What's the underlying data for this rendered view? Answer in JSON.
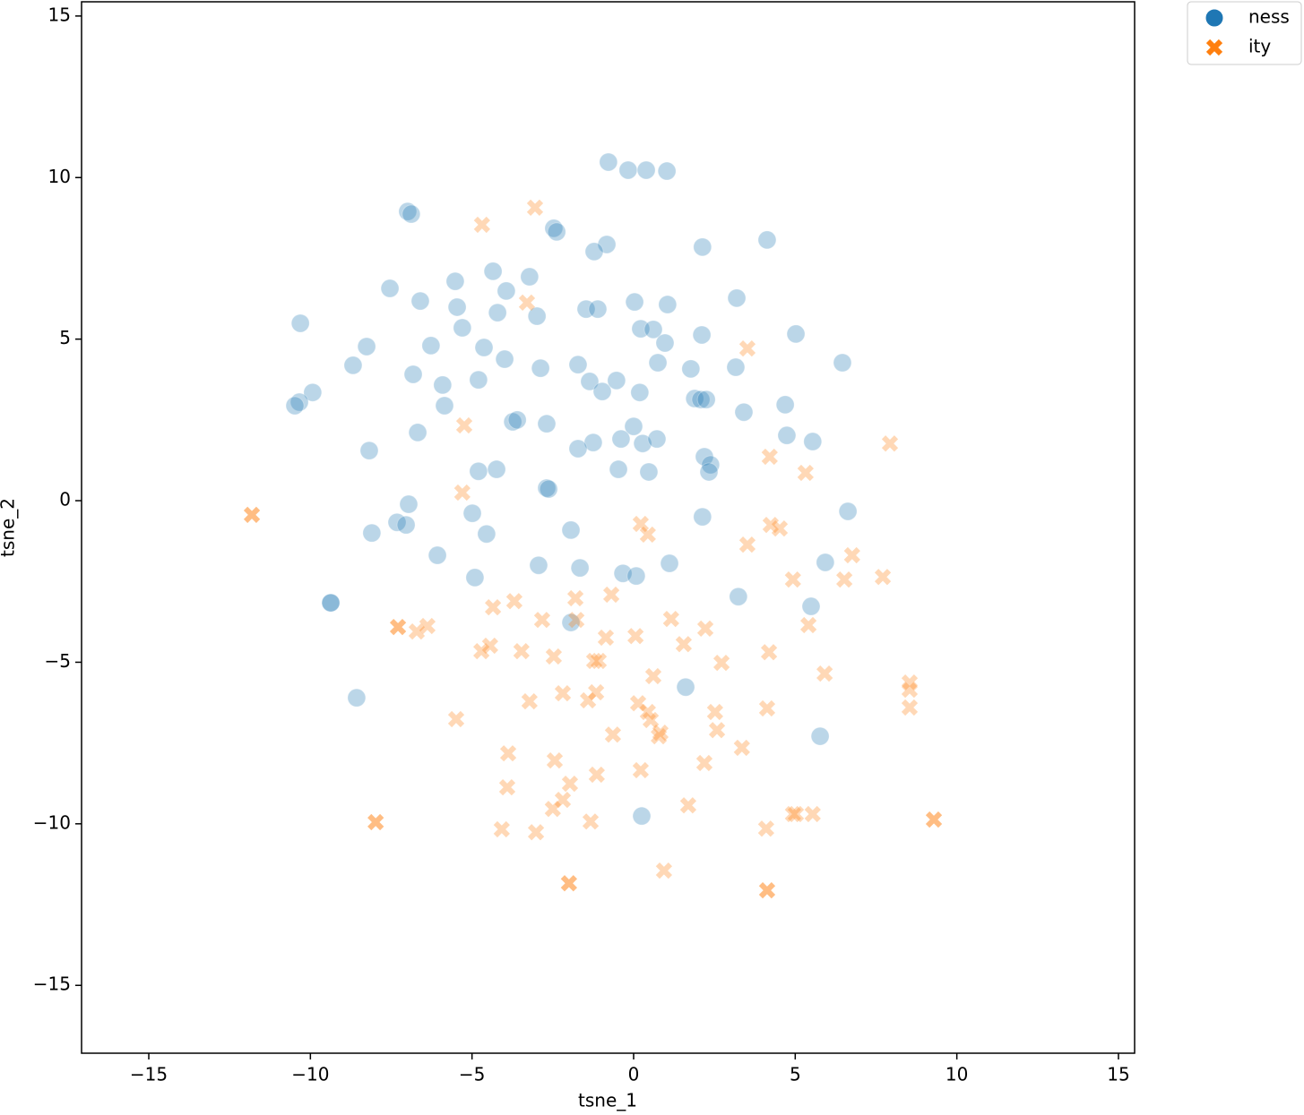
{
  "chart_data": {
    "type": "scatter",
    "xlabel": "tsne_1",
    "ylabel": "tsne_2",
    "xlim": [
      -17.08,
      15.5
    ],
    "ylim": [
      -17.1,
      15.44
    ],
    "xticks": [
      {
        "value": -15,
        "label": "−15"
      },
      {
        "value": -10,
        "label": "−10"
      },
      {
        "value": -5,
        "label": "−5"
      },
      0,
      5,
      10,
      15
    ],
    "yticks": [
      {
        "value": -15,
        "label": "−15"
      },
      {
        "value": -10,
        "label": "−10"
      },
      {
        "value": -5,
        "label": "−5"
      },
      0,
      5,
      10,
      15
    ],
    "opacity": 0.3,
    "legend": "outside upper right",
    "series": [
      {
        "name": "ness",
        "color": "#1f77b4",
        "marker": "o",
        "x": [
          -0.78,
          -0.17,
          0.39,
          1.03,
          -6.99,
          -6.88,
          -2.47,
          -2.38,
          -0.83,
          -1.22,
          2.13,
          4.13,
          -7.54,
          -6.6,
          -5.52,
          -4.35,
          -3.94,
          -3.22,
          -5.46,
          -4.21,
          -2.99,
          -1.47,
          -1.11,
          0.03,
          1.05,
          3.19,
          -10.31,
          -5.3,
          0.22,
          0.61,
          2.11,
          5.02,
          -8.26,
          -6.27,
          -4.63,
          0.97,
          -8.68,
          -3.99,
          -2.88,
          -1.72,
          0.75,
          1.77,
          3.16,
          6.46,
          -6.82,
          -4.8,
          -5.91,
          -1.36,
          -0.97,
          -0.53,
          0.19,
          -9.93,
          -10.34,
          -10.48,
          1.89,
          2.08,
          2.25,
          4.69,
          3.41,
          -5.85,
          -3.74,
          -3.6,
          -2.69,
          0.0,
          -6.68,
          4.74,
          5.54,
          -0.39,
          0.28,
          0.72,
          -1.25,
          -1.72,
          -8.18,
          2.19,
          2.38,
          2.33,
          -4.8,
          -4.24,
          -0.47,
          0.47,
          -2.69,
          -2.63,
          -6.96,
          6.63,
          -4.99,
          2.13,
          -7.32,
          -7.04,
          -8.1,
          -4.55,
          -1.94,
          -6.07,
          -2.94,
          -1.66,
          1.11,
          5.93,
          -4.91,
          -0.33,
          0.08,
          -9.37,
          -9.37,
          3.24,
          5.49,
          -1.94,
          -8.57,
          1.61,
          5.77,
          0.25
        ],
        "values": [
          10.48,
          10.23,
          10.23,
          10.2,
          8.95,
          8.87,
          8.43,
          8.32,
          7.93,
          7.71,
          7.85,
          8.07,
          6.57,
          6.18,
          6.79,
          7.1,
          6.49,
          6.93,
          5.99,
          5.82,
          5.71,
          5.93,
          5.93,
          6.15,
          6.07,
          6.27,
          5.49,
          5.35,
          5.32,
          5.3,
          5.13,
          5.16,
          4.77,
          4.8,
          4.74,
          4.88,
          4.19,
          4.38,
          4.1,
          4.21,
          4.27,
          4.08,
          4.13,
          4.27,
          3.91,
          3.74,
          3.58,
          3.69,
          3.38,
          3.72,
          3.35,
          3.35,
          3.05,
          2.94,
          3.16,
          3.13,
          3.13,
          2.97,
          2.74,
          2.94,
          2.44,
          2.5,
          2.38,
          2.3,
          2.11,
          2.02,
          1.83,
          1.91,
          1.77,
          1.91,
          1.8,
          1.61,
          1.55,
          1.36,
          1.11,
          0.89,
          0.91,
          0.97,
          0.97,
          0.89,
          0.39,
          0.36,
          -0.11,
          -0.33,
          -0.39,
          -0.5,
          -0.67,
          -0.75,
          -1.0,
          -1.03,
          -0.91,
          -1.69,
          -2.0,
          -2.08,
          -1.94,
          -1.91,
          -2.38,
          -2.25,
          -2.33,
          -3.16,
          -3.16,
          -2.97,
          -3.27,
          -3.77,
          -6.1,
          -5.77,
          -7.29,
          -9.76
        ]
      },
      {
        "name": "ity",
        "color": "#ff7f0e",
        "marker": "X",
        "x": [
          -3.05,
          -4.69,
          -3.3,
          3.52,
          -5.24,
          7.93,
          4.21,
          5.32,
          -5.3,
          -11.81,
          -11.81,
          0.22,
          0.44,
          4.24,
          4.52,
          3.52,
          6.76,
          4.93,
          6.52,
          7.71,
          -1.8,
          -0.69,
          -3.69,
          -4.35,
          -2.83,
          -1.77,
          1.16,
          -7.29,
          -7.29,
          -6.71,
          -6.38,
          2.22,
          5.41,
          -0.86,
          0.06,
          1.55,
          -4.71,
          -4.44,
          -3.47,
          -2.47,
          -1.22,
          -1.08,
          2.72,
          4.19,
          0.61,
          5.91,
          8.54,
          8.54,
          -2.19,
          -1.41,
          -1.16,
          -3.22,
          0.14,
          0.44,
          2.52,
          4.13,
          8.54,
          -5.49,
          0.53,
          0.83,
          0.78,
          2.58,
          -0.64,
          3.35,
          -3.88,
          -2.44,
          2.19,
          -1.14,
          0.22,
          -1.97,
          -3.91,
          -2.19,
          -2.5,
          1.69,
          4.93,
          5.02,
          5.54,
          -7.98,
          -7.98,
          9.29,
          9.29,
          -1.33,
          -4.08,
          -3.02,
          4.1,
          0.94,
          -2.0,
          -2.0,
          4.13,
          4.13
        ],
        "values": [
          9.07,
          8.54,
          6.13,
          4.71,
          2.33,
          1.77,
          1.36,
          0.86,
          0.25,
          -0.44,
          -0.44,
          -0.72,
          -1.05,
          -0.75,
          -0.86,
          -1.36,
          -1.69,
          -2.44,
          -2.44,
          -2.36,
          -3.02,
          -2.91,
          -3.11,
          -3.3,
          -3.69,
          -3.69,
          -3.66,
          -3.91,
          -3.91,
          -4.05,
          -3.88,
          -3.96,
          -3.85,
          -4.24,
          -4.19,
          -4.44,
          -4.66,
          -4.49,
          -4.66,
          -4.82,
          -4.96,
          -4.96,
          -5.02,
          -4.69,
          -5.43,
          -5.35,
          -5.63,
          -5.85,
          -5.96,
          -6.18,
          -5.93,
          -6.21,
          -6.27,
          -6.54,
          -6.54,
          -6.43,
          -6.4,
          -6.76,
          -6.79,
          -7.18,
          -7.29,
          -7.1,
          -7.24,
          -7.65,
          -7.82,
          -8.04,
          -8.12,
          -8.48,
          -8.34,
          -8.76,
          -8.87,
          -9.26,
          -9.54,
          -9.43,
          -9.7,
          -9.7,
          -9.7,
          -9.95,
          -9.95,
          -9.87,
          -9.87,
          -9.93,
          -10.17,
          -10.26,
          -10.15,
          -11.45,
          -11.84,
          -11.84,
          -12.06,
          -12.06
        ]
      }
    ]
  }
}
